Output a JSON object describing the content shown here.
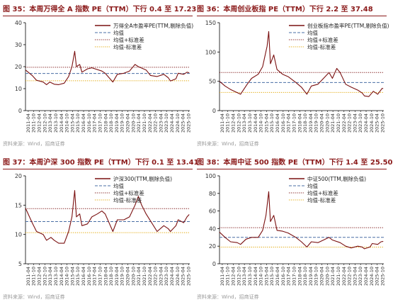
{
  "panels": [
    {
      "title": "图 35：本周万得全 A 指数 PE（TTM）下行 0.4 至 17.23",
      "source": "资料来源：Wind，招商证券",
      "chart_data": {
        "type": "line",
        "ylim": [
          0,
          40
        ],
        "yticks": [
          0,
          10,
          20,
          30,
          40
        ],
        "series": [
          {
            "name": "万得全A市盈率PE(TTM,剔除负值)",
            "color": "#7a1010",
            "style": "solid",
            "points": [
              [
                2011.0,
                18.5
              ],
              [
                2011.6,
                16
              ],
              [
                2012.0,
                13.8
              ],
              [
                2012.6,
                13
              ],
              [
                2012.9,
                11.8
              ],
              [
                2013.2,
                13
              ],
              [
                2013.6,
                12
              ],
              [
                2014.0,
                11.8
              ],
              [
                2014.5,
                12.5
              ],
              [
                2014.9,
                15.5
              ],
              [
                2015.2,
                20
              ],
              [
                2015.45,
                27
              ],
              [
                2015.6,
                20
              ],
              [
                2015.9,
                21
              ],
              [
                2016.1,
                17.5
              ],
              [
                2016.6,
                19
              ],
              [
                2017.0,
                19.5
              ],
              [
                2017.9,
                18
              ],
              [
                2018.2,
                17
              ],
              [
                2018.9,
                13
              ],
              [
                2019.3,
                16.5
              ],
              [
                2019.9,
                17
              ],
              [
                2020.4,
                18
              ],
              [
                2020.9,
                21
              ],
              [
                2021.2,
                20
              ],
              [
                2021.9,
                18.5
              ],
              [
                2022.3,
                16
              ],
              [
                2022.9,
                15.5
              ],
              [
                2023.5,
                16.5
              ],
              [
                2023.9,
                15
              ],
              [
                2024.1,
                13.5
              ],
              [
                2024.6,
                14.5
              ],
              [
                2024.8,
                17
              ],
              [
                2025.3,
                16.5
              ],
              [
                2025.6,
                17.5
              ],
              [
                2025.8,
                17.23
              ]
            ]
          },
          {
            "name": "均值",
            "color": "#4a6fa5",
            "style": "dash",
            "value": 16.9
          },
          {
            "name": "均值+标准差",
            "color": "#7a1010",
            "style": "dot",
            "value": 19.7
          },
          {
            "name": "均值-标准差",
            "color": "#e0a500",
            "style": "dot",
            "value": 13.6
          }
        ]
      }
    },
    {
      "title": "图 36：本周创业板指 PE（TTM）下行 2.2 至 37.48",
      "source": "资料来源：Wind，招商证券",
      "chart_data": {
        "type": "line",
        "ylim": [
          0,
          150
        ],
        "yticks": [
          0,
          50,
          100,
          150
        ],
        "series": [
          {
            "name": "创业板指市盈率PE(TTM,剔除负值)",
            "color": "#7a1010",
            "style": "solid",
            "points": [
              [
                2011.0,
                50
              ],
              [
                2011.5,
                42
              ],
              [
                2012.0,
                36
              ],
              [
                2012.9,
                28
              ],
              [
                2013.5,
                45
              ],
              [
                2013.9,
                55
              ],
              [
                2014.5,
                62
              ],
              [
                2014.9,
                75
              ],
              [
                2015.3,
                110
              ],
              [
                2015.45,
                135
              ],
              [
                2015.6,
                80
              ],
              [
                2015.9,
                95
              ],
              [
                2016.2,
                70
              ],
              [
                2016.7,
                62
              ],
              [
                2017.2,
                58
              ],
              [
                2017.9,
                48
              ],
              [
                2018.4,
                40
              ],
              [
                2018.9,
                28
              ],
              [
                2019.3,
                42
              ],
              [
                2019.9,
                45
              ],
              [
                2020.4,
                55
              ],
              [
                2020.9,
                65
              ],
              [
                2021.2,
                55
              ],
              [
                2021.6,
                72
              ],
              [
                2021.9,
                65
              ],
              [
                2022.4,
                45
              ],
              [
                2022.9,
                40
              ],
              [
                2023.5,
                35
              ],
              [
                2023.9,
                30
              ],
              [
                2024.1,
                25
              ],
              [
                2024.5,
                24
              ],
              [
                2024.9,
                33
              ],
              [
                2025.3,
                28
              ],
              [
                2025.7,
                38
              ],
              [
                2025.8,
                37.48
              ]
            ]
          },
          {
            "name": "均值",
            "color": "#4a6fa5",
            "style": "dash",
            "value": 48
          },
          {
            "name": "均值+标准差",
            "color": "#7a1010",
            "style": "dot",
            "value": 65
          },
          {
            "name": "均值-标准差",
            "color": "#e0a500",
            "style": "dot",
            "value": 31
          }
        ]
      }
    },
    {
      "title": "图 37：本周沪深 300 指数 PE（TTM）下行 0.1 至 13.41",
      "source": "资料来源：Wind，招商证券",
      "chart_data": {
        "type": "line",
        "ylim": [
          5,
          20
        ],
        "yticks": [
          5,
          10,
          15,
          20
        ],
        "series": [
          {
            "name": "沪深300(TTM,剔除负值)",
            "color": "#7a1010",
            "style": "solid",
            "points": [
              [
                2011.0,
                14.5
              ],
              [
                2011.6,
                12
              ],
              [
                2012.0,
                10.5
              ],
              [
                2012.6,
                10
              ],
              [
                2012.9,
                9
              ],
              [
                2013.3,
                9.5
              ],
              [
                2013.6,
                9
              ],
              [
                2014.0,
                8.5
              ],
              [
                2014.5,
                8.5
              ],
              [
                2014.9,
                10.5
              ],
              [
                2015.2,
                13
              ],
              [
                2015.45,
                17.5
              ],
              [
                2015.6,
                13
              ],
              [
                2015.9,
                13.5
              ],
              [
                2016.1,
                11.5
              ],
              [
                2016.6,
                11.8
              ],
              [
                2017.0,
                13
              ],
              [
                2017.5,
                13.5
              ],
              [
                2017.9,
                14
              ],
              [
                2018.2,
                13.5
              ],
              [
                2018.9,
                10.5
              ],
              [
                2019.3,
                12.5
              ],
              [
                2019.9,
                12.5
              ],
              [
                2020.4,
                13
              ],
              [
                2020.9,
                15
              ],
              [
                2021.2,
                16.5
              ],
              [
                2021.5,
                15
              ],
              [
                2021.9,
                13.5
              ],
              [
                2022.4,
                12
              ],
              [
                2022.9,
                10.5
              ],
              [
                2023.5,
                11.5
              ],
              [
                2023.9,
                11
              ],
              [
                2024.1,
                10.5
              ],
              [
                2024.6,
                11.5
              ],
              [
                2024.8,
                12.5
              ],
              [
                2025.3,
                12
              ],
              [
                2025.6,
                13
              ],
              [
                2025.8,
                13.41
              ]
            ]
          },
          {
            "name": "均值",
            "color": "#4a6fa5",
            "style": "dash",
            "value": 12.2
          },
          {
            "name": "均值+标准差",
            "color": "#7a1010",
            "style": "dot",
            "value": 14.4
          },
          {
            "name": "均值-标准差",
            "color": "#e0a500",
            "style": "dot",
            "value": 10.3
          }
        ]
      }
    },
    {
      "title": "图 38：本周中证 500 指数 PE（TTM）下行 1.4 至 25.50",
      "source": "资料来源：Wind，招商证券",
      "chart_data": {
        "type": "line",
        "ylim": [
          0,
          100
        ],
        "yticks": [
          0,
          20,
          40,
          60,
          80,
          100
        ],
        "series": [
          {
            "name": "中证500(TTM,剔除负值)",
            "color": "#7a1010",
            "style": "solid",
            "points": [
              [
                2011.0,
                36
              ],
              [
                2011.5,
                30
              ],
              [
                2012.0,
                25
              ],
              [
                2012.6,
                24
              ],
              [
                2012.9,
                22
              ],
              [
                2013.4,
                28
              ],
              [
                2013.9,
                30
              ],
              [
                2014.5,
                30
              ],
              [
                2014.9,
                38
              ],
              [
                2015.2,
                55
              ],
              [
                2015.45,
                82
              ],
              [
                2015.6,
                48
              ],
              [
                2015.9,
                55
              ],
              [
                2016.2,
                38
              ],
              [
                2016.7,
                37
              ],
              [
                2017.2,
                35
              ],
              [
                2017.9,
                30
              ],
              [
                2018.4,
                25
              ],
              [
                2018.9,
                19
              ],
              [
                2019.3,
                25
              ],
              [
                2019.9,
                24
              ],
              [
                2020.4,
                27
              ],
              [
                2020.9,
                30
              ],
              [
                2021.2,
                27
              ],
              [
                2021.9,
                24
              ],
              [
                2022.4,
                20
              ],
              [
                2022.9,
                18
              ],
              [
                2023.5,
                20
              ],
              [
                2023.9,
                19
              ],
              [
                2024.1,
                17
              ],
              [
                2024.6,
                19
              ],
              [
                2024.8,
                23
              ],
              [
                2025.3,
                22
              ],
              [
                2025.6,
                25
              ],
              [
                2025.8,
                25.5
              ]
            ]
          },
          {
            "name": "均值",
            "color": "#4a6fa5",
            "style": "dash",
            "value": 30
          },
          {
            "name": "均值+标准差",
            "color": "#7a1010",
            "style": "dot",
            "value": 41
          },
          {
            "name": "均值-标准差",
            "color": "#e0a500",
            "style": "dot",
            "value": 19
          }
        ]
      }
    }
  ],
  "x_ticks": [
    "2011-04",
    "2011-10",
    "2012-04",
    "2012-10",
    "2013-04",
    "2013-10",
    "2014-04",
    "2014-10",
    "2015-04",
    "2015-10",
    "2016-04",
    "2016-10",
    "2017-04",
    "2017-10",
    "2018-04",
    "2018-10",
    "2019-04",
    "2019-10",
    "2020-04",
    "2020-10",
    "2021-04",
    "2021-10",
    "2022-04",
    "2022-10",
    "2023-04",
    "2023-10",
    "2024-04",
    "2024-10",
    "2025-04",
    "2025-10"
  ]
}
